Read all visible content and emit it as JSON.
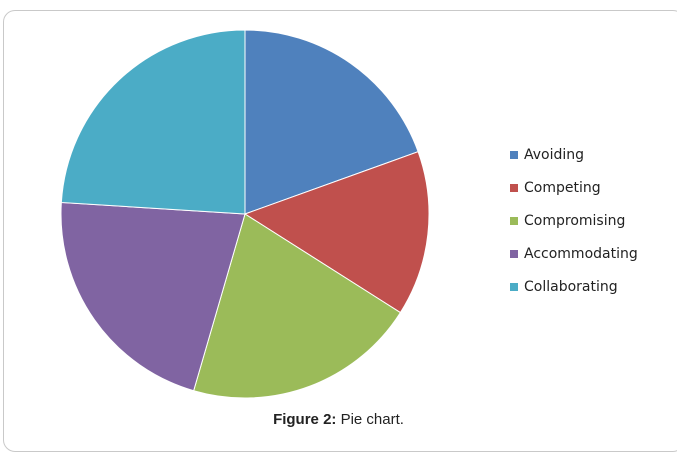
{
  "chart_data": {
    "type": "pie",
    "slices": [
      {
        "label": "Avoiding",
        "value": 19.5,
        "color": "#4F81BD"
      },
      {
        "label": "Competing",
        "value": 14.5,
        "color": "#C0504D"
      },
      {
        "label": "Compromising",
        "value": 20.5,
        "color": "#9BBB59"
      },
      {
        "label": "Accommodating",
        "value": 21.5,
        "color": "#8064A2"
      },
      {
        "label": "Collaborating",
        "value": 24.0,
        "color": "#4BACC6"
      }
    ],
    "legend_position": "right"
  },
  "caption": {
    "label": "Figure 2:",
    "text": " Pie chart."
  }
}
